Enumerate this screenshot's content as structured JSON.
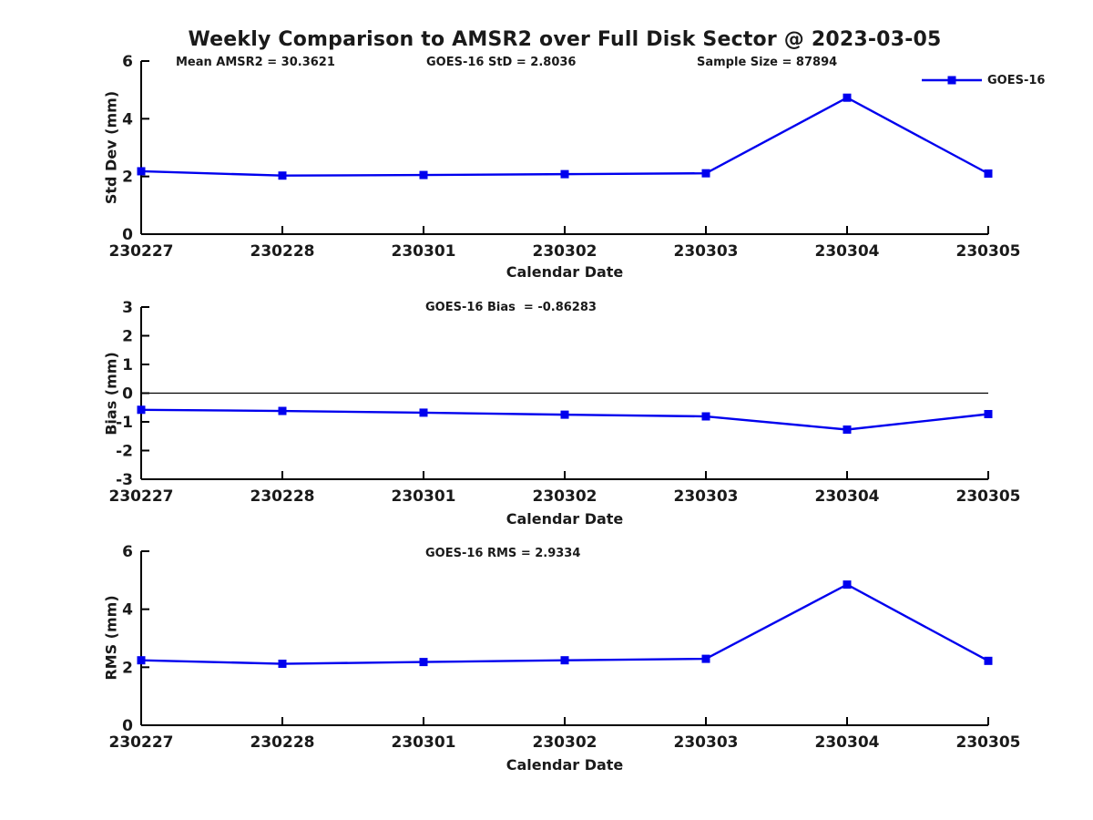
{
  "figure": {
    "title": "Weekly Comparison to AMSR2 over Full Disk Sector @ 2023-03-05",
    "colors": {
      "series": "#0000EE",
      "text": "#1a1a1a",
      "axis": "#000000"
    }
  },
  "legend": {
    "label": "GOES-16",
    "position": "top-right"
  },
  "chart_data": [
    {
      "type": "line",
      "name": "std-dev",
      "title_annotations": [
        "Mean AMSR2 = 30.3621",
        "GOES-16 StD = 2.8036",
        "Sample Size = 87894"
      ],
      "categories": [
        "230227",
        "230228",
        "230301",
        "230302",
        "230303",
        "230304",
        "230305"
      ],
      "series": [
        {
          "name": "GOES-16",
          "values": [
            2.18,
            2.03,
            2.05,
            2.08,
            2.11,
            4.73,
            2.1
          ]
        }
      ],
      "xlabel": "Calendar Date",
      "ylabel": "Std Dev (mm)",
      "ylim": [
        0,
        6
      ],
      "yticks": [
        0,
        2,
        4,
        6
      ],
      "zero_line": false,
      "grid": false,
      "show_legend": true
    },
    {
      "type": "line",
      "name": "bias",
      "title_annotations": [
        "GOES-16 Bias  = -0.86283"
      ],
      "categories": [
        "230227",
        "230228",
        "230301",
        "230302",
        "230303",
        "230304",
        "230305"
      ],
      "series": [
        {
          "name": "GOES-16",
          "values": [
            -0.58,
            -0.62,
            -0.68,
            -0.75,
            -0.81,
            -1.27,
            -0.73
          ]
        }
      ],
      "xlabel": "Calendar Date",
      "ylabel": "Bias (mm)",
      "ylim": [
        -3,
        3
      ],
      "yticks": [
        -3,
        -2,
        -1,
        0,
        1,
        2,
        3
      ],
      "zero_line": true,
      "grid": false,
      "show_legend": false
    },
    {
      "type": "line",
      "name": "rms",
      "title_annotations": [
        "GOES-16 RMS = 2.9334"
      ],
      "categories": [
        "230227",
        "230228",
        "230301",
        "230302",
        "230303",
        "230304",
        "230305"
      ],
      "series": [
        {
          "name": "GOES-16",
          "values": [
            2.24,
            2.12,
            2.18,
            2.24,
            2.29,
            4.85,
            2.22
          ]
        }
      ],
      "xlabel": "Calendar Date",
      "ylabel": "RMS (mm)",
      "ylim": [
        0,
        6
      ],
      "yticks": [
        0,
        2,
        4,
        6
      ],
      "zero_line": false,
      "grid": false,
      "show_legend": false
    }
  ]
}
